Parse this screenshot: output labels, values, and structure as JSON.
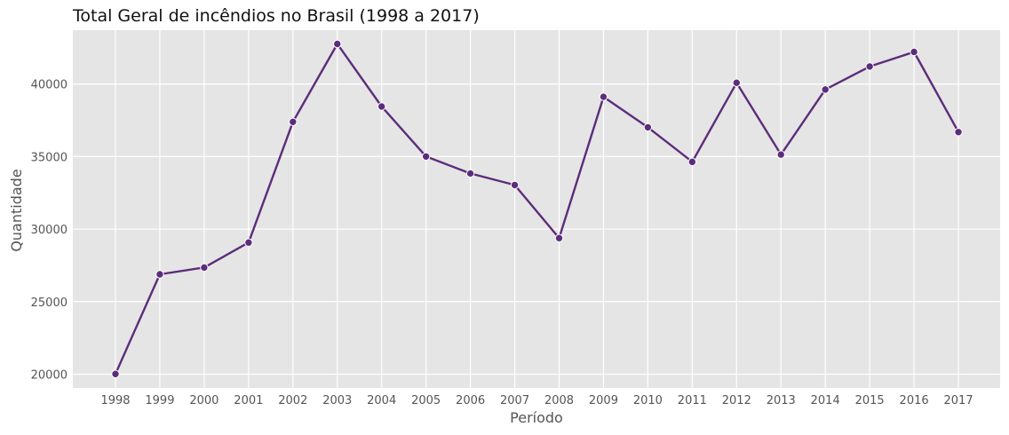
{
  "chart_data": {
    "type": "line",
    "title": "Total Geral de incêndios no Brasil (1998 a 2017)",
    "xlabel": "Período",
    "ylabel": "Quantidade",
    "x": [
      "1998",
      "1999",
      "2000",
      "2001",
      "2002",
      "2003",
      "2004",
      "2005",
      "2006",
      "2007",
      "2008",
      "2009",
      "2010",
      "2011",
      "2012",
      "2013",
      "2014",
      "2015",
      "2016",
      "2017"
    ],
    "series": [
      {
        "values": [
          20014,
          26883,
          27352,
          29071,
          37390,
          42761,
          38450,
          35004,
          33832,
          33038,
          29379,
          39117,
          37015,
          34633,
          40084,
          35137,
          39621,
          41208,
          42212,
          36686
        ]
      }
    ],
    "yticks": [
      20000,
      25000,
      30000,
      35000,
      40000
    ],
    "ylim": [
      19050,
      43710
    ],
    "grid": true,
    "line_color": "#5c2d7a",
    "background_color": "#e5e5e5",
    "grid_color": "#ffffff"
  }
}
